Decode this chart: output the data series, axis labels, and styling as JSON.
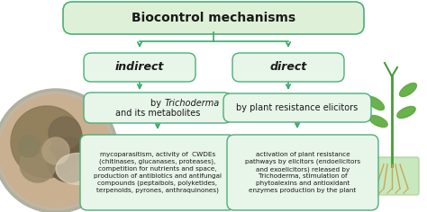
{
  "title": "Biocontrol mechanisms",
  "box_fill_light": "#e8f5e9",
  "box_fill_title": "#dff0d8",
  "box_border": "#4caf78",
  "indirect_label": "indirect",
  "direct_label": "direct",
  "indirect_sub_line1": "by ",
  "indirect_sub_italic": "Trichoderma",
  "indirect_sub_line2": "and its metabolites",
  "direct_sub": "by plant resistance elicitors",
  "indirect_text": "mycoparasitism, activity of  CWDEs\n(chitinases, glucanases, proteases),\ncompetition for nutrients and space,\nproduction of antibiotics and antifungal\ncompounds (peptaibols, polyketides,\nterpenoids, pyrones, anthraquinones)",
  "direct_text_line1": "activation of plant resistance",
  "direct_text_line2": "pathways by elicitors (endoelicitors",
  "direct_text_line3": "and exoelicitors) released by",
  "direct_text_line4_italic": "Trichoderma,",
  "direct_text_line4_rest": " stimulation of",
  "direct_text_line5": "phytoalexins and antioxidant",
  "direct_text_line6": "enzymes production by the plant",
  "arrow_color": "#3aaa6a",
  "bg_color": "#ffffff",
  "text_color": "#1a1a1a",
  "petri_color1": "#c8b89a",
  "petri_color2": "#8a7a5a",
  "petri_border": "#aaaaaa",
  "plant_green": "#5aaa3a",
  "plant_root": "#c8a870"
}
